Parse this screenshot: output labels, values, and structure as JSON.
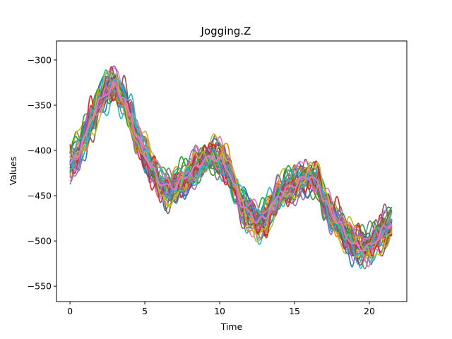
{
  "chart_data": {
    "type": "line",
    "title": "Jogging.Z",
    "xlabel": "Time",
    "ylabel": "Values",
    "xlim": [
      -0.9,
      22.5
    ],
    "ylim": [
      -567,
      -279
    ],
    "xticks": [
      0,
      5,
      10,
      15,
      20
    ],
    "yticks": [
      -550,
      -500,
      -450,
      -400,
      -350,
      -300
    ],
    "xtick_labels": [
      "0",
      "5",
      "10",
      "15",
      "20"
    ],
    "ytick_labels": [
      "−550",
      "−500",
      "−450",
      "−400",
      "−350",
      "−300"
    ],
    "grid": false,
    "legend": "none",
    "colors": [
      "#1f77b4",
      "#ff7f0e",
      "#2ca02c",
      "#d62728",
      "#9467bd",
      "#8c564b",
      "#e377c2",
      "#7f7f7f",
      "#bcbd22",
      "#17becf"
    ],
    "mean_curve": {
      "x": [
        0,
        0.5,
        1,
        1.5,
        2,
        2.5,
        3,
        3.5,
        4,
        4.5,
        5,
        5.5,
        6,
        6.5,
        7,
        7.5,
        8,
        8.5,
        9,
        9.5,
        10,
        10.5,
        11,
        11.5,
        12,
        12.5,
        13,
        13.5,
        14,
        14.5,
        15,
        15.5,
        16,
        16.5,
        17,
        17.5,
        18,
        18.5,
        19,
        19.5,
        20,
        20.5,
        21,
        21.5
      ],
      "y": [
        -415,
        -405,
        -385,
        -362,
        -345,
        -335,
        -328,
        -340,
        -360,
        -385,
        -405,
        -420,
        -435,
        -440,
        -440,
        -432,
        -425,
        -418,
        -410,
        -408,
        -410,
        -420,
        -440,
        -460,
        -470,
        -478,
        -475,
        -462,
        -450,
        -442,
        -438,
        -432,
        -428,
        -435,
        -455,
        -470,
        -480,
        -495,
        -505,
        -508,
        -506,
        -498,
        -485,
        -480
      ]
    },
    "series_count": 40
  }
}
